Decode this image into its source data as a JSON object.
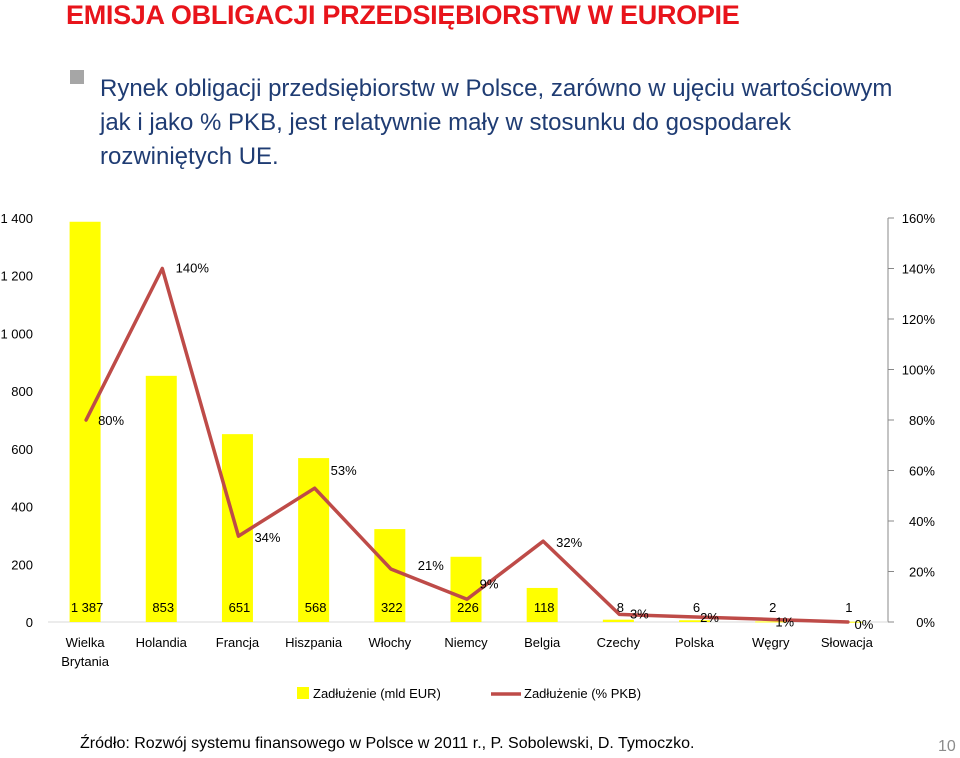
{
  "title": "EMISJA OBLIGACJI PRZEDSIĘBIORSTW W EUROPIE",
  "bullet": "Rynek obligacji przedsiębiorstw w Polsce, zarówno w ujęciu wartościowym jak i jako % PKB, jest relatywnie mały w stosunku do gospodarek rozwiniętych UE.",
  "source": "Źródło: Rozwój systemu finansowego w Polsce w 2011 r., P. Sobolewski, D. Tymoczko.",
  "page_number": "10",
  "colors": {
    "bar": "#ffff00",
    "line": "#be4b48",
    "title": "#e8141b",
    "text": "#1f3c73"
  },
  "chart_data": {
    "type": "bar",
    "categories": [
      "Wielka Brytania",
      "Holandia",
      "Francja",
      "Hiszpania",
      "Włochy",
      "Niemcy",
      "Belgia",
      "Czechy",
      "Polska",
      "Węgry",
      "Słowacja"
    ],
    "series": [
      {
        "name": "Zadłużenie (mld EUR)",
        "type": "bar",
        "axis": "left",
        "values": [
          1387,
          853,
          651,
          568,
          322,
          226,
          118,
          8,
          6,
          2,
          1
        ],
        "labels": [
          "1 387",
          "853",
          "651",
          "568",
          "322",
          "226",
          "118",
          "8",
          "6",
          "2",
          "1"
        ]
      },
      {
        "name": "Zadłużenie (% PKB)",
        "type": "line",
        "axis": "right",
        "values": [
          80,
          140,
          34,
          53,
          21,
          9,
          32,
          3,
          2,
          1,
          0
        ],
        "labels": [
          "80%",
          "140%",
          "34%",
          "53%",
          "21%",
          "9%",
          "32%",
          "3%",
          "2%",
          "1%",
          "0%"
        ]
      }
    ],
    "y_left": {
      "min": 0,
      "max": 1400,
      "ticks": [
        "0",
        "200",
        "400",
        "600",
        "800",
        "1 000",
        "1 200",
        "1 400"
      ]
    },
    "y_right": {
      "min": 0,
      "max": 160,
      "ticks": [
        "0%",
        "20%",
        "40%",
        "60%",
        "80%",
        "100%",
        "120%",
        "140%",
        "160%"
      ]
    },
    "legend": [
      "Zadłużenie (mld EUR)",
      "Zadłużenie (% PKB)"
    ],
    "legend_position": "bottom",
    "grid": false
  }
}
